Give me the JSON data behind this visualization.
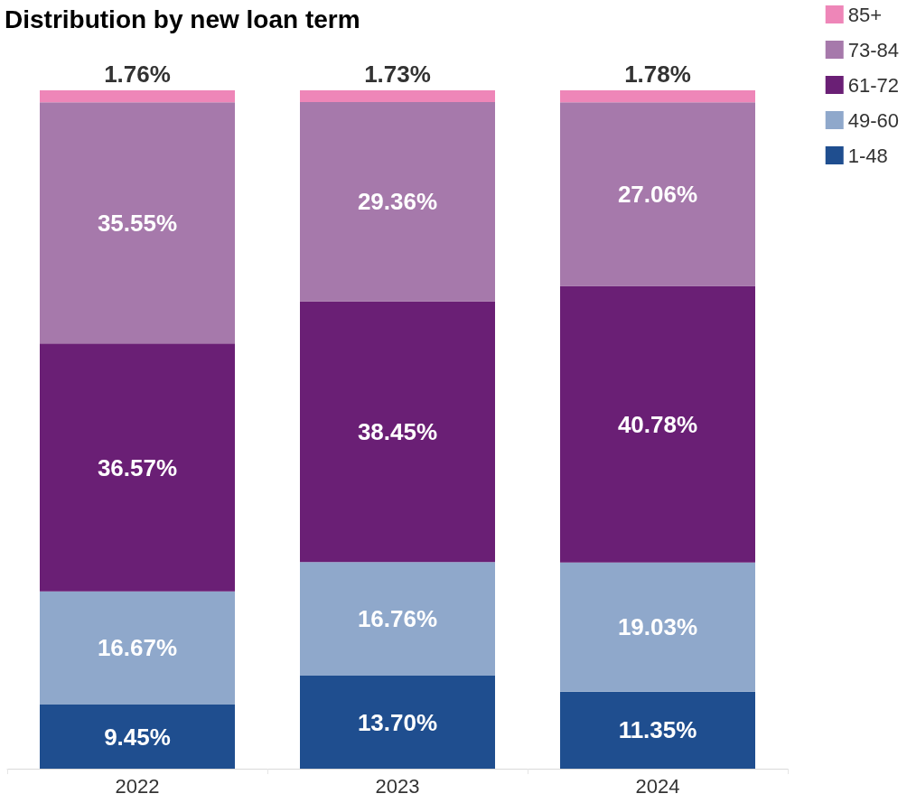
{
  "chart_data": {
    "type": "bar",
    "title": "Distribution by new loan term",
    "categories": [
      "2022",
      "2023",
      "2024"
    ],
    "stacked": true,
    "data_labels": true,
    "legend": "top right",
    "grid": false,
    "series": [
      {
        "name": "1-48",
        "color": "#1f4e8f",
        "values": [
          9.45,
          13.7,
          11.35
        ],
        "value_labels": [
          "9.45%",
          "13.70%",
          "11.35%"
        ]
      },
      {
        "name": "49-60",
        "color": "#8fa8cb",
        "values": [
          16.67,
          16.76,
          19.03
        ],
        "value_labels": [
          "16.67%",
          "16.76%",
          "19.03%"
        ]
      },
      {
        "name": "61-72",
        "color": "#6a1f75",
        "values": [
          36.57,
          38.45,
          40.78
        ],
        "value_labels": [
          "36.57%",
          "38.45%",
          "40.78%"
        ]
      },
      {
        "name": "73-84",
        "color": "#a679ab",
        "values": [
          35.55,
          29.36,
          27.06
        ],
        "value_labels": [
          "35.55%",
          "29.36%",
          "27.06%"
        ]
      },
      {
        "name": "85+",
        "color": "#ee86b8",
        "values": [
          1.76,
          1.73,
          1.78
        ],
        "value_labels": [
          "1.76%",
          "1.73%",
          "1.78%"
        ]
      }
    ]
  }
}
